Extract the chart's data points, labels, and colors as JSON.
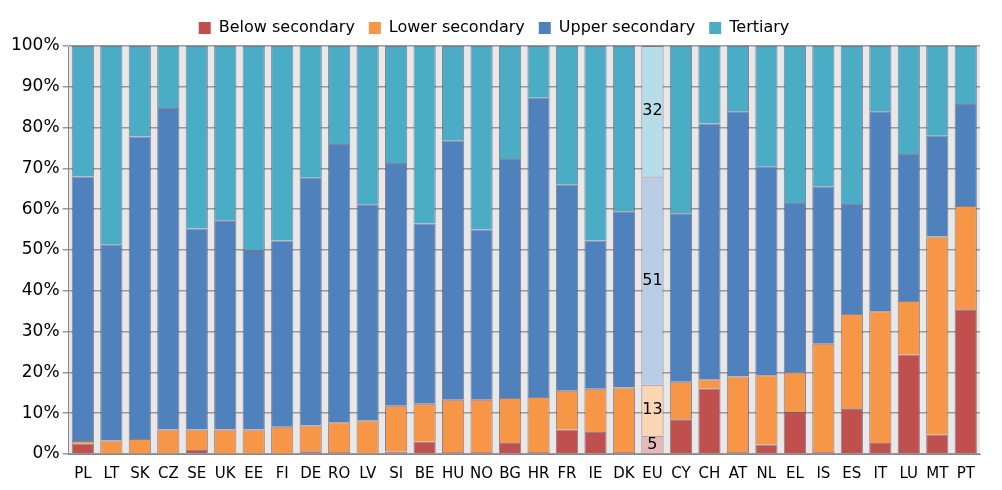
{
  "chart_data": {
    "type": "bar",
    "stacked": true,
    "legend": "top",
    "grid": "y",
    "categories": [
      "PL",
      "LT",
      "SK",
      "CZ",
      "SE",
      "UK",
      "EE",
      "FI",
      "DE",
      "RO",
      "LV",
      "SI",
      "BE",
      "HU",
      "NO",
      "BG",
      "HR",
      "FR",
      "IE",
      "DK",
      "EU",
      "CY",
      "CH",
      "AT",
      "NL",
      "EL",
      "IS",
      "ES",
      "IT",
      "LU",
      "MT",
      "PT"
    ],
    "ylim": [
      0,
      100
    ],
    "yticks": [
      {
        "value": 0,
        "label": "0%"
      },
      {
        "value": 10,
        "label": "10%"
      },
      {
        "value": 20,
        "label": "20%"
      },
      {
        "value": 30,
        "label": "30%"
      },
      {
        "value": 40,
        "label": "40%"
      },
      {
        "value": 50,
        "label": "50%"
      },
      {
        "value": 60,
        "label": "60%"
      },
      {
        "value": 70,
        "label": "70%"
      },
      {
        "value": 80,
        "label": "80%"
      },
      {
        "value": 90,
        "label": "90%"
      },
      {
        "value": 100,
        "label": "100%"
      }
    ],
    "series": [
      {
        "name": "Below secondary",
        "color": "#c0504d",
        "colors": [
          "#c0504d",
          "#c0504d",
          "#c0504d",
          "#c0504d",
          "#c0504d",
          "#c0504d",
          "#c0504d",
          "#c0504d",
          "#c0504d",
          "#c0504d",
          "#c0504d",
          "#c0504d",
          "#c0504d",
          "#c0504d",
          "#c0504d",
          "#c0504d",
          "#c0504d",
          "#c0504d",
          "#c0504d",
          "#c0504d",
          "#e6b9b8",
          "#c0504d",
          "#c0504d",
          "#c0504d",
          "#c0504d",
          "#c0504d",
          "#c0504d",
          "#c0504d",
          "#c0504d",
          "#c0504d",
          "#c0504d",
          "#c0504d"
        ],
        "values": [
          2.5,
          0,
          0,
          0,
          1,
          0,
          0,
          0,
          0.7,
          0.5,
          0,
          0.6,
          3,
          0.5,
          0.5,
          2.7,
          0.5,
          6,
          5.4,
          0.5,
          4.5,
          8.5,
          16,
          0.5,
          2.3,
          10.3,
          0.5,
          11,
          2.7,
          24.3,
          4.7,
          35.5
        ],
        "value_labels": [
          null,
          null,
          null,
          null,
          null,
          null,
          null,
          null,
          null,
          null,
          null,
          null,
          null,
          null,
          null,
          null,
          null,
          null,
          null,
          null,
          "5",
          null,
          null,
          null,
          null,
          null,
          null,
          null,
          null,
          null,
          null,
          null
        ]
      },
      {
        "name": "Lower secondary",
        "color": "#f79646",
        "colors": [
          "#f79646",
          "#f79646",
          "#f79646",
          "#f79646",
          "#f79646",
          "#f79646",
          "#f79646",
          "#f79646",
          "#f79646",
          "#f79646",
          "#f79646",
          "#f79646",
          "#f79646",
          "#f79646",
          "#f79646",
          "#f79646",
          "#f79646",
          "#f79646",
          "#f79646",
          "#f79646",
          "#fcd5b5",
          "#f79646",
          "#f79646",
          "#f79646",
          "#f79646",
          "#f79646",
          "#f79646",
          "#f79646",
          "#f79646",
          "#f79646",
          "#f79646",
          "#f79646"
        ],
        "values": [
          0.7,
          3.3,
          3.7,
          6,
          5,
          6,
          6,
          6.7,
          6.3,
          7.3,
          8.3,
          11.2,
          9.3,
          12.8,
          12.8,
          11,
          13.5,
          9.5,
          10.6,
          15.8,
          12.5,
          9.2,
          2.3,
          18.5,
          17,
          9.7,
          26.5,
          23.3,
          32.3,
          13.2,
          48.6,
          25.3
        ],
        "value_labels": [
          null,
          null,
          null,
          null,
          null,
          null,
          null,
          null,
          null,
          null,
          null,
          null,
          null,
          null,
          null,
          null,
          null,
          null,
          null,
          null,
          "13",
          null,
          null,
          null,
          null,
          null,
          null,
          null,
          null,
          null,
          null,
          null
        ]
      },
      {
        "name": "Upper secondary",
        "color": "#4f81bd",
        "colors": [
          "#4f81bd",
          "#4f81bd",
          "#4f81bd",
          "#4f81bd",
          "#4f81bd",
          "#4f81bd",
          "#4f81bd",
          "#4f81bd",
          "#4f81bd",
          "#4f81bd",
          "#4f81bd",
          "#4f81bd",
          "#4f81bd",
          "#4f81bd",
          "#4f81bd",
          "#4f81bd",
          "#4f81bd",
          "#4f81bd",
          "#4f81bd",
          "#4f81bd",
          "#b9cde5",
          "#4f81bd",
          "#4f81bd",
          "#4f81bd",
          "#4f81bd",
          "#4f81bd",
          "#4f81bd",
          "#4f81bd",
          "#4f81bd",
          "#4f81bd",
          "#4f81bd",
          "#4f81bd"
        ],
        "values": [
          64.8,
          48,
          74.1,
          78.8,
          49.3,
          51.3,
          44,
          45.6,
          60.7,
          68.2,
          52.9,
          59.5,
          44.2,
          63.5,
          41.7,
          58.6,
          73.3,
          50.5,
          36.3,
          43.2,
          51,
          41.3,
          62.7,
          65,
          51.2,
          41.5,
          38.5,
          27,
          49,
          36,
          24.7,
          25
        ],
        "value_labels": [
          null,
          null,
          null,
          null,
          null,
          null,
          null,
          null,
          null,
          null,
          null,
          null,
          null,
          null,
          null,
          null,
          null,
          null,
          null,
          null,
          "51",
          null,
          null,
          null,
          null,
          null,
          null,
          null,
          null,
          null,
          null,
          null
        ]
      },
      {
        "name": "Tertiary",
        "color": "#4bacc6",
        "colors": [
          "#4bacc6",
          "#4bacc6",
          "#4bacc6",
          "#4bacc6",
          "#4bacc6",
          "#4bacc6",
          "#4bacc6",
          "#4bacc6",
          "#4bacc6",
          "#4bacc6",
          "#4bacc6",
          "#4bacc6",
          "#4bacc6",
          "#4bacc6",
          "#4bacc6",
          "#4bacc6",
          "#4bacc6",
          "#4bacc6",
          "#4bacc6",
          "#4bacc6",
          "#b7dee8",
          "#4bacc6",
          "#4bacc6",
          "#4bacc6",
          "#4bacc6",
          "#4bacc6",
          "#4bacc6",
          "#4bacc6",
          "#4bacc6",
          "#4bacc6",
          "#4bacc6",
          "#4bacc6"
        ],
        "values": [
          32,
          48.7,
          22.2,
          15.2,
          44.7,
          42.7,
          50,
          47.7,
          32.3,
          24,
          38.8,
          28.7,
          43.5,
          23.2,
          45,
          27.7,
          12.7,
          34,
          47.7,
          40.5,
          32,
          41,
          19,
          16,
          29.5,
          38.5,
          34.5,
          38.7,
          16,
          26.5,
          22,
          14.2
        ],
        "value_labels": [
          null,
          null,
          null,
          null,
          null,
          null,
          null,
          null,
          null,
          null,
          null,
          null,
          null,
          null,
          null,
          null,
          null,
          null,
          null,
          null,
          "32",
          null,
          null,
          null,
          null,
          null,
          null,
          null,
          null,
          null,
          null,
          null
        ]
      }
    ]
  }
}
